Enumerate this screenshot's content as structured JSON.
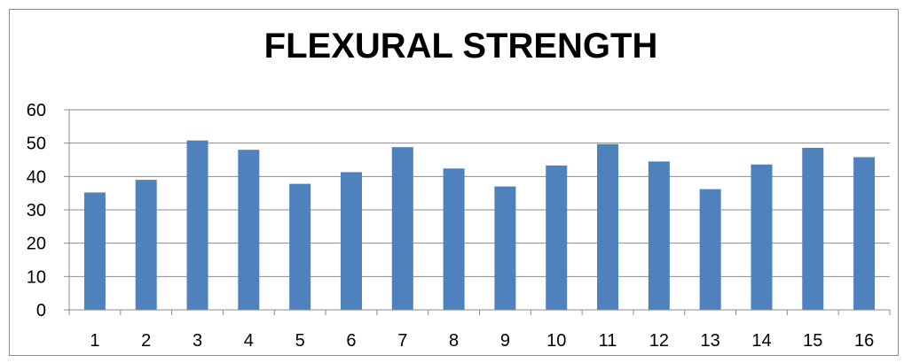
{
  "chart_data": {
    "type": "bar",
    "title": "FLEXURAL STRENGTH",
    "xlabel": "",
    "ylabel": "",
    "categories": [
      "1",
      "2",
      "3",
      "4",
      "5",
      "6",
      "7",
      "8",
      "9",
      "10",
      "11",
      "12",
      "13",
      "14",
      "15",
      "16"
    ],
    "values": [
      35.2,
      39.0,
      50.8,
      48.0,
      37.8,
      41.3,
      48.8,
      42.4,
      37.0,
      43.3,
      49.7,
      44.5,
      36.2,
      43.6,
      48.6,
      45.8
    ],
    "ylim": [
      0,
      60
    ],
    "yticks": [
      "0",
      "10",
      "20",
      "30",
      "40",
      "50",
      "60"
    ],
    "grid": true,
    "legend": "none",
    "colors": {
      "bar": "#4f81bd",
      "grid": "#8c8c8c",
      "axis": "#8c8c8c"
    }
  }
}
